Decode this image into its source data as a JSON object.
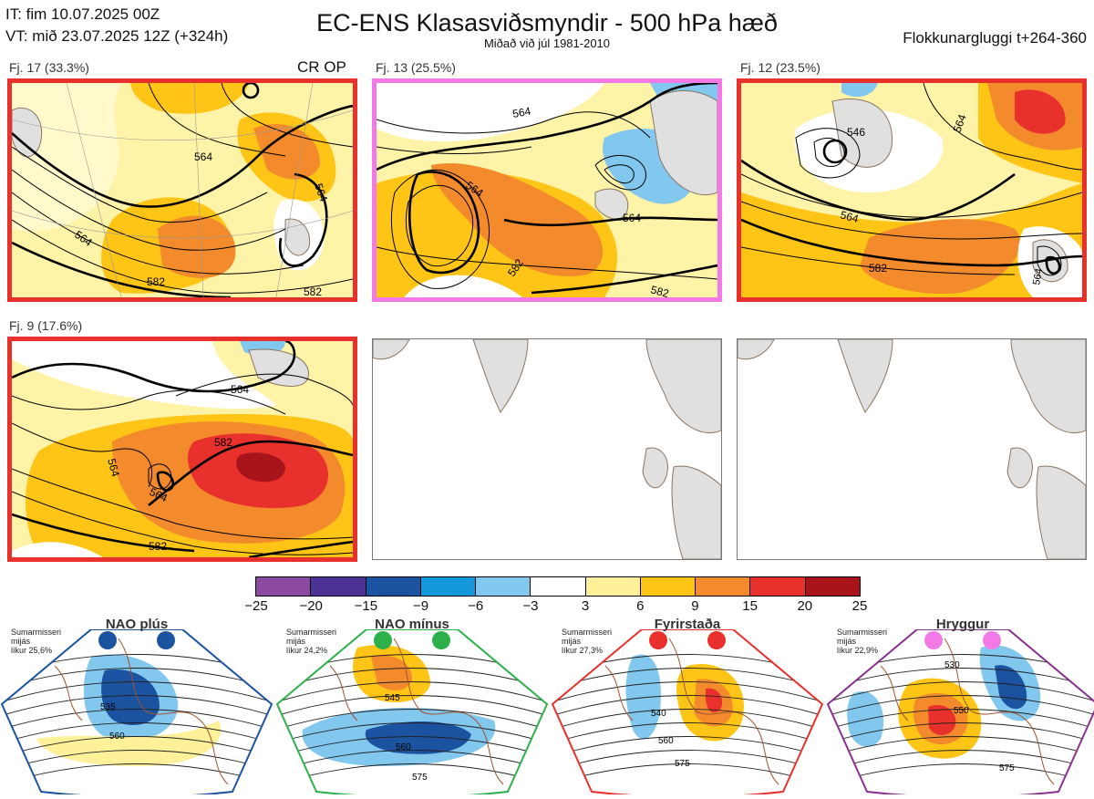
{
  "header": {
    "it_line": "IT: fim 10.07.2025 00Z",
    "vt_line": "VT: mið 23.07.2025 12Z  (+324h)",
    "title": "EC-ENS Klasasviðsmyndir - 500 hPa hæð",
    "subtitle": "Miðað við júl 1981-2010",
    "window": "Flokkunargluggi t+264-360"
  },
  "panels": [
    {
      "label": "Fj. 17 (33.3%)",
      "marker": "CR OP",
      "border": "#e8302c",
      "contours": [
        "564",
        "564",
        "564",
        "582",
        "582"
      ]
    },
    {
      "label": "Fj. 13 (25.5%)",
      "border": "#f27ae6",
      "contours": [
        "564",
        "564",
        "564",
        "582",
        "582"
      ]
    },
    {
      "label": "Fj. 12 (23.5%)",
      "border": "#e8302c",
      "contours": [
        "546",
        "564",
        "564",
        "582",
        "564"
      ]
    },
    {
      "label": "Fj. 9 (17.6%)",
      "border": "#e8302c",
      "contours": [
        "564",
        "564",
        "564",
        "582",
        "582"
      ]
    }
  ],
  "colorbar": {
    "colors": [
      "#8b4aa0",
      "#4b3294",
      "#1b53a0",
      "#1597dc",
      "#82c7ee",
      "#ffffff",
      "#fff19a",
      "#fec516",
      "#f38b2c",
      "#e8302c",
      "#a8141a"
    ],
    "labels": [
      "−25",
      "−20",
      "−15",
      "−9",
      "−6",
      "−3",
      "3",
      "6",
      "9",
      "15",
      "20",
      "25"
    ]
  },
  "regimes": [
    {
      "name": "NAO plús",
      "note": [
        "Sumarmisseri",
        "mijás",
        "líkur 25,6%"
      ],
      "color": "#1b53a0",
      "contours": [
        "535",
        "560"
      ]
    },
    {
      "name": "NAO mínus",
      "note": [
        "Sumarmisseri",
        "mijás",
        "líkur 24,2%"
      ],
      "color": "#2db04a",
      "contours": [
        "545",
        "560",
        "575"
      ]
    },
    {
      "name": "Fyrirstaða",
      "note": [
        "Sumarmisseri",
        "mijás",
        "líkur 27,3%"
      ],
      "color": "#e8302c",
      "contours": [
        "540",
        "560",
        "575"
      ]
    },
    {
      "name": "Hryggur",
      "note": [
        "Sumarmisseri",
        "mijás",
        "líkur 22,9%"
      ],
      "color": "#8b2f8f",
      "dotcolor": "#f27ae6",
      "contours": [
        "530",
        "550",
        "575"
      ]
    }
  ]
}
